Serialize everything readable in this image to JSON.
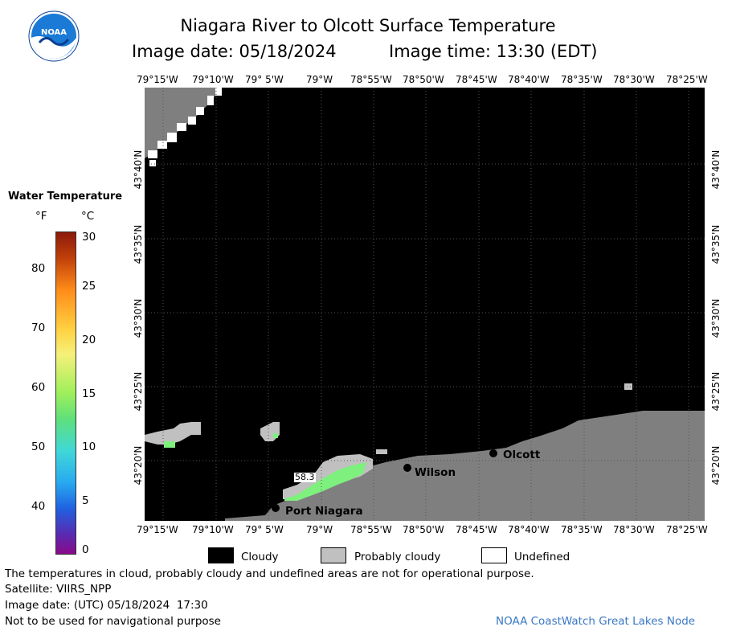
{
  "header": {
    "title": "Niagara River to Olcott Surface Temperature",
    "date_label": "Image date: 05/18/2024",
    "time_label": "Image time: 13:30 (EDT)"
  },
  "logo": {
    "text": "NOAA",
    "colors": {
      "outer": "#1a7ad6",
      "inner": "#ffffff",
      "band": "#0b3d91"
    }
  },
  "axes": {
    "lon_labels": [
      "79°15'W",
      "79°10'W",
      "79° 5'W",
      "79°W",
      "78°55'W",
      "78°50'W",
      "78°45'W",
      "78°40'W",
      "78°35'W",
      "78°30'W",
      "78°25'W"
    ],
    "lat_labels": [
      "43°40'N",
      "43°35'N",
      "43°30'N",
      "43°25'N",
      "43°20'N"
    ]
  },
  "colorbar": {
    "title": "Water Temperature",
    "unit_f": "°F",
    "unit_c": "°C",
    "f_ticks": [
      "80",
      "70",
      "60",
      "50",
      "40"
    ],
    "c_ticks": [
      "30",
      "25",
      "20",
      "15",
      "10",
      "5",
      "0"
    ]
  },
  "map": {
    "places": [
      "Olcott",
      "Wilson",
      "Port Niagara"
    ],
    "temp_label": "58.3",
    "colors": {
      "cloudy": "#000000",
      "land": "#7f7f7f",
      "probably_cloudy": "#c0c0c0",
      "undefined": "#ffffff",
      "water": "#7ef07e",
      "grid": "#444444"
    }
  },
  "legend": {
    "items": [
      {
        "label": "Cloudy",
        "color": "#000000"
      },
      {
        "label": "Probably cloudy",
        "color": "#c0c0c0"
      },
      {
        "label": "Undefined",
        "color": "#ffffff"
      }
    ]
  },
  "footer": {
    "notice": "The temperatures in cloud, probably cloudy and undefined areas are not for operational purpose.",
    "satellite": "Satellite: VIIRS_NPP",
    "utc_date": "Image date: (UTC) 05/18/2024  17:30",
    "navigation": "Not to be used for navigational purpose",
    "credit": "NOAA CoastWatch Great Lakes Node"
  }
}
